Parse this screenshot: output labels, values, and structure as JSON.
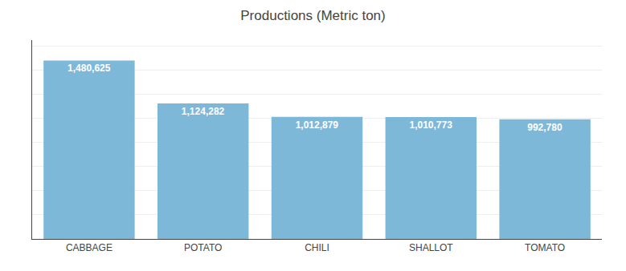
{
  "chart_data": {
    "type": "bar",
    "title": "Productions (Metric ton)",
    "categories": [
      "CABBAGE",
      "POTATO",
      "CHILI",
      "SHALLOT",
      "TOMATO"
    ],
    "values": [
      1480625,
      1124282,
      1012879,
      1010773,
      992780
    ],
    "value_labels": [
      "1,480,625",
      "1,124,282",
      "1,012,879",
      "1,010,773",
      "992,780"
    ],
    "data_labels": true,
    "color": "#7EB8D9",
    "ylim": [
      0,
      1650000
    ],
    "yticks": [
      0,
      200000,
      400000,
      600000,
      800000,
      1000000,
      1200000,
      1400000,
      1600000
    ],
    "grid": true,
    "tick_labels": "x"
  }
}
